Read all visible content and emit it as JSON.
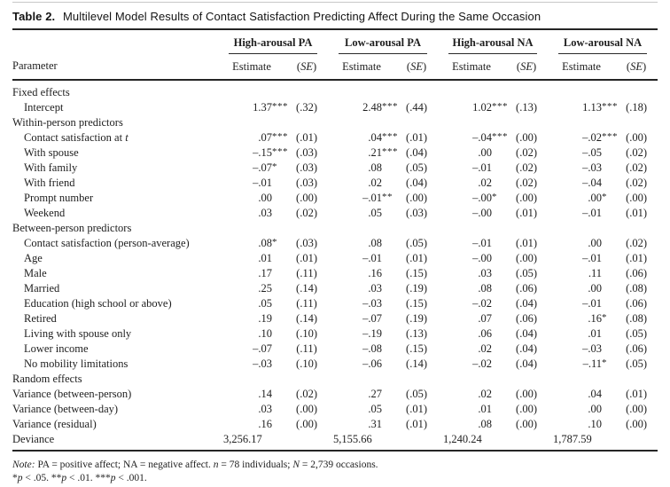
{
  "colors": {
    "bg": "#ffffff",
    "text": "#1e1e1e",
    "rule": "#252525",
    "top_line": "#c8c8c8"
  },
  "title": {
    "parts": [
      {
        "t": "Table 2.",
        "b": true
      },
      {
        "t": " Multilevel Model Results of Contact Satisfaction Predicting Affect During the Same Occasion"
      }
    ]
  },
  "table": {
    "parameter_header": "Parameter",
    "estimate_header": "Estimate",
    "se_header_parts": [
      {
        "t": "("
      },
      {
        "t": "SE",
        "i": true
      },
      {
        "t": ")"
      }
    ],
    "groups": [
      {
        "label": "High-arousal PA"
      },
      {
        "label": "Low-arousal PA"
      },
      {
        "label": "High-arousal NA"
      },
      {
        "label": "Low-arousal NA"
      }
    ],
    "rows": [
      {
        "label": [
          {
            "t": "Fixed effects"
          }
        ],
        "indent": 0,
        "section": true
      },
      {
        "label": [
          {
            "t": "Intercept"
          }
        ],
        "indent": 1,
        "cells": [
          [
            "1.37",
            "***",
            "(.32)"
          ],
          [
            "2.48",
            "***",
            "(.44)"
          ],
          [
            "1.02",
            "***",
            "(.13)"
          ],
          [
            "1.13",
            "***",
            "(.18)"
          ]
        ]
      },
      {
        "label": [
          {
            "t": "Within-person predictors"
          }
        ],
        "indent": 0,
        "section": true
      },
      {
        "label": [
          {
            "t": "Contact satisfaction at "
          },
          {
            "t": "t",
            "i": true
          }
        ],
        "indent": 1,
        "cells": [
          [
            ".07",
            "***",
            "(.01)"
          ],
          [
            ".04",
            "***",
            "(.01)"
          ],
          [
            "–.04",
            "***",
            "(.00)"
          ],
          [
            "–.02",
            "***",
            "(.00)"
          ]
        ]
      },
      {
        "label": [
          {
            "t": "With spouse"
          }
        ],
        "indent": 1,
        "cells": [
          [
            "–.15",
            "***",
            "(.03)"
          ],
          [
            ".21",
            "***",
            "(.04)"
          ],
          [
            ".00",
            "",
            "(.02)"
          ],
          [
            "–.05",
            "",
            "(.02)"
          ]
        ]
      },
      {
        "label": [
          {
            "t": "With family"
          }
        ],
        "indent": 1,
        "cells": [
          [
            "–.07",
            "*",
            "(.03)"
          ],
          [
            ".08",
            "",
            "(.05)"
          ],
          [
            "–.01",
            "",
            "(.02)"
          ],
          [
            "–.03",
            "",
            "(.02)"
          ]
        ]
      },
      {
        "label": [
          {
            "t": "With friend"
          }
        ],
        "indent": 1,
        "cells": [
          [
            "–.01",
            "",
            "(.03)"
          ],
          [
            ".02",
            "",
            "(.04)"
          ],
          [
            ".02",
            "",
            "(.02)"
          ],
          [
            "–.04",
            "",
            "(.02)"
          ]
        ]
      },
      {
        "label": [
          {
            "t": "Prompt number"
          }
        ],
        "indent": 1,
        "cells": [
          [
            ".00",
            "",
            "(.00)"
          ],
          [
            "–.01",
            "**",
            "(.00)"
          ],
          [
            "–.00",
            "*",
            "(.00)"
          ],
          [
            ".00",
            "*",
            "(.00)"
          ]
        ]
      },
      {
        "label": [
          {
            "t": "Weekend"
          }
        ],
        "indent": 1,
        "cells": [
          [
            ".03",
            "",
            "(.02)"
          ],
          [
            ".05",
            "",
            "(.03)"
          ],
          [
            "–.00",
            "",
            "(.01)"
          ],
          [
            "–.01",
            "",
            "(.01)"
          ]
        ]
      },
      {
        "label": [
          {
            "t": "Between-person predictors"
          }
        ],
        "indent": 0,
        "section": true
      },
      {
        "label": [
          {
            "t": "Contact satisfaction (person-average)"
          }
        ],
        "indent": 1,
        "cells": [
          [
            ".08",
            "*",
            "(.03)"
          ],
          [
            ".08",
            "",
            "(.05)"
          ],
          [
            "–.01",
            "",
            "(.01)"
          ],
          [
            ".00",
            "",
            "(.02)"
          ]
        ]
      },
      {
        "label": [
          {
            "t": "Age"
          }
        ],
        "indent": 1,
        "cells": [
          [
            ".01",
            "",
            "(.01)"
          ],
          [
            "–.01",
            "",
            "(.01)"
          ],
          [
            "–.00",
            "",
            "(.00)"
          ],
          [
            "–.01",
            "",
            "(.01)"
          ]
        ]
      },
      {
        "label": [
          {
            "t": "Male"
          }
        ],
        "indent": 1,
        "cells": [
          [
            ".17",
            "",
            "(.11)"
          ],
          [
            ".16",
            "",
            "(.15)"
          ],
          [
            ".03",
            "",
            "(.05)"
          ],
          [
            ".11",
            "",
            "(.06)"
          ]
        ]
      },
      {
        "label": [
          {
            "t": "Married"
          }
        ],
        "indent": 1,
        "cells": [
          [
            ".25",
            "",
            "(.14)"
          ],
          [
            ".03",
            "",
            "(.19)"
          ],
          [
            ".08",
            "",
            "(.06)"
          ],
          [
            ".00",
            "",
            "(.08)"
          ]
        ]
      },
      {
        "label": [
          {
            "t": "Education (high school or above)"
          }
        ],
        "indent": 1,
        "cells": [
          [
            ".05",
            "",
            "(.11)"
          ],
          [
            "–.03",
            "",
            "(.15)"
          ],
          [
            "–.02",
            "",
            "(.04)"
          ],
          [
            "–.01",
            "",
            "(.06)"
          ]
        ]
      },
      {
        "label": [
          {
            "t": "Retired"
          }
        ],
        "indent": 1,
        "cells": [
          [
            ".19",
            "",
            "(.14)"
          ],
          [
            "–.07",
            "",
            "(.19)"
          ],
          [
            ".07",
            "",
            "(.06)"
          ],
          [
            ".16",
            "*",
            "(.08)"
          ]
        ]
      },
      {
        "label": [
          {
            "t": "Living with spouse only"
          }
        ],
        "indent": 1,
        "cells": [
          [
            ".10",
            "",
            "(.10)"
          ],
          [
            "–.19",
            "",
            "(.13)"
          ],
          [
            ".06",
            "",
            "(.04)"
          ],
          [
            ".01",
            "",
            "(.05)"
          ]
        ]
      },
      {
        "label": [
          {
            "t": "Lower income"
          }
        ],
        "indent": 1,
        "cells": [
          [
            "–.07",
            "",
            "(.11)"
          ],
          [
            "–.08",
            "",
            "(.15)"
          ],
          [
            ".02",
            "",
            "(.04)"
          ],
          [
            "–.03",
            "",
            "(.06)"
          ]
        ]
      },
      {
        "label": [
          {
            "t": "No mobility limitations"
          }
        ],
        "indent": 1,
        "cells": [
          [
            "–.03",
            "",
            "(.10)"
          ],
          [
            "–.06",
            "",
            "(.14)"
          ],
          [
            "–.02",
            "",
            "(.04)"
          ],
          [
            "–.11",
            "*",
            "(.05)"
          ]
        ]
      },
      {
        "label": [
          {
            "t": "Random effects"
          }
        ],
        "indent": 0,
        "section": true
      },
      {
        "label": [
          {
            "t": "Variance (between-person)"
          }
        ],
        "indent": 0,
        "cells": [
          [
            ".14",
            "",
            "(.02)"
          ],
          [
            ".27",
            "",
            "(.05)"
          ],
          [
            ".02",
            "",
            "(.00)"
          ],
          [
            ".04",
            "",
            "(.01)"
          ]
        ]
      },
      {
        "label": [
          {
            "t": "Variance (between-day)"
          }
        ],
        "indent": 0,
        "cells": [
          [
            ".03",
            "",
            "(.00)"
          ],
          [
            ".05",
            "",
            "(.01)"
          ],
          [
            ".01",
            "",
            "(.00)"
          ],
          [
            ".00",
            "",
            "(.00)"
          ]
        ]
      },
      {
        "label": [
          {
            "t": "Variance (residual)"
          }
        ],
        "indent": 0,
        "cells": [
          [
            ".16",
            "",
            "(.00)"
          ],
          [
            ".31",
            "",
            "(.01)"
          ],
          [
            ".08",
            "",
            "(.00)"
          ],
          [
            ".10",
            "",
            "(.00)"
          ]
        ]
      },
      {
        "label": [
          {
            "t": "Deviance"
          }
        ],
        "indent": 0,
        "deviance": true,
        "values": [
          "3,256.17",
          "5,155.66",
          "1,240.24",
          "1,787.59"
        ]
      }
    ]
  },
  "notes": {
    "line1_parts": [
      {
        "t": "Note:",
        "i": true
      },
      {
        "t": " PA = positive affect; NA = negative affect. "
      },
      {
        "t": "n",
        "i": true
      },
      {
        "t": " = 78 individuals; "
      },
      {
        "t": "N",
        "i": true
      },
      {
        "t": " = 2,739 occasions."
      }
    ],
    "line2_parts": [
      {
        "t": "*"
      },
      {
        "t": "p",
        "i": true
      },
      {
        "t": " < .05. **"
      },
      {
        "t": "p",
        "i": true
      },
      {
        "t": " < .01. ***"
      },
      {
        "t": "p",
        "i": true
      },
      {
        "t": " < .001."
      }
    ]
  }
}
